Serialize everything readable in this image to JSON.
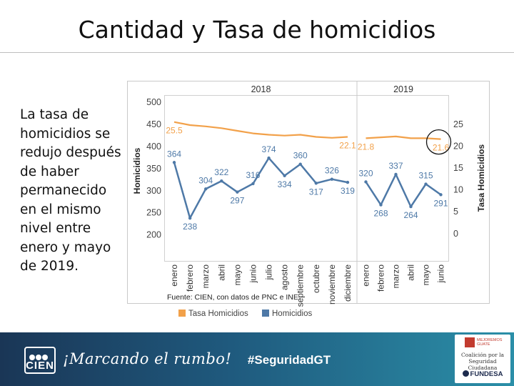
{
  "slide": {
    "title": "Cantidad y Tasa de homicidios",
    "side_text": "La tasa de homicidios se redujo después de haber permanecido en el mismo nivel entre enero y mayo de 2019."
  },
  "footer": {
    "logo_text": "CIEN",
    "slogan": "¡Marcando el rumbo!",
    "hashtag": "#SeguridadGT",
    "partner_top": "MEJOREMOS GUATE",
    "partner_name": "Coalición por la Seguridad Ciudadana",
    "partner_fundesa": "FUNDESA"
  },
  "colors": {
    "rate_line": "#F2A14A",
    "count_line": "#4E79A7",
    "footer_bg": "#1f5a7e"
  },
  "chart_data": {
    "type": "line",
    "years": [
      "2018",
      "2019"
    ],
    "categories": {
      "2018": [
        "enero",
        "febrero",
        "marzo",
        "abril",
        "mayo",
        "junio",
        "julio",
        "agosto",
        "septiembre",
        "octubre",
        "noviembre",
        "diciembre"
      ],
      "2019": [
        "enero",
        "febrero",
        "marzo",
        "abril",
        "mayo",
        "junio"
      ]
    },
    "series": [
      {
        "name": "Tasa Homicidios",
        "axis": "right",
        "values_2018": [
          25.5,
          24.8,
          24.5,
          24.1,
          23.5,
          22.9,
          22.6,
          22.4,
          22.6,
          22.1,
          21.9,
          22.1
        ],
        "values_2019": [
          21.8,
          22.0,
          22.2,
          21.8,
          21.8,
          21.6
        ],
        "labels_2018": {
          "0": "25.5",
          "11": "22.1"
        },
        "labels_2019": {
          "0": "21.8",
          "5": "21.6"
        }
      },
      {
        "name": "Homicidios",
        "axis": "left",
        "values_2018": [
          364,
          238,
          304,
          322,
          297,
          316,
          374,
          334,
          360,
          317,
          326,
          319
        ],
        "values_2019": [
          320,
          268,
          337,
          264,
          315,
          291
        ]
      }
    ],
    "ylabel": "Homicidios",
    "y2label": "Tasa Homicidios",
    "ylim": [
      180,
      510
    ],
    "yticks": [
      200,
      250,
      300,
      350,
      400,
      450,
      500
    ],
    "y2ticks": [
      0,
      5,
      10,
      15,
      20,
      25
    ],
    "y2_map": {
      "rate_0": 203,
      "rate_25": 450.5
    },
    "source": "Fuente: CIEN, con datos de PNC e INE.",
    "legend_position": "bottom-left",
    "highlight": {
      "year": "2019",
      "index": 5
    }
  }
}
